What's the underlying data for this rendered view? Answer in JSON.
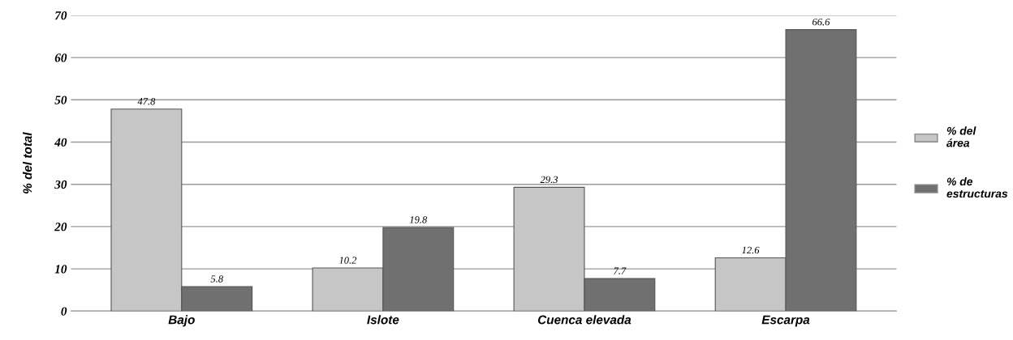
{
  "chart_data": {
    "type": "bar",
    "ylabel": "% del total",
    "categories": [
      "Bajo",
      "Islote",
      "Cuenca elevada",
      "Escarpa"
    ],
    "series": [
      {
        "name": "% del\nárea",
        "color": "#c6c6c6",
        "values": [
          47.8,
          10.2,
          29.3,
          12.6
        ]
      },
      {
        "name": "% de\nestructuras",
        "color": "#707070",
        "values": [
          5.8,
          19.8,
          7.7,
          66.6
        ]
      }
    ],
    "ylim": [
      0,
      70
    ],
    "yticks": [
      0,
      10,
      20,
      30,
      40,
      50,
      60,
      70
    ],
    "grid": "y",
    "legend": "right",
    "data_labels": true
  }
}
